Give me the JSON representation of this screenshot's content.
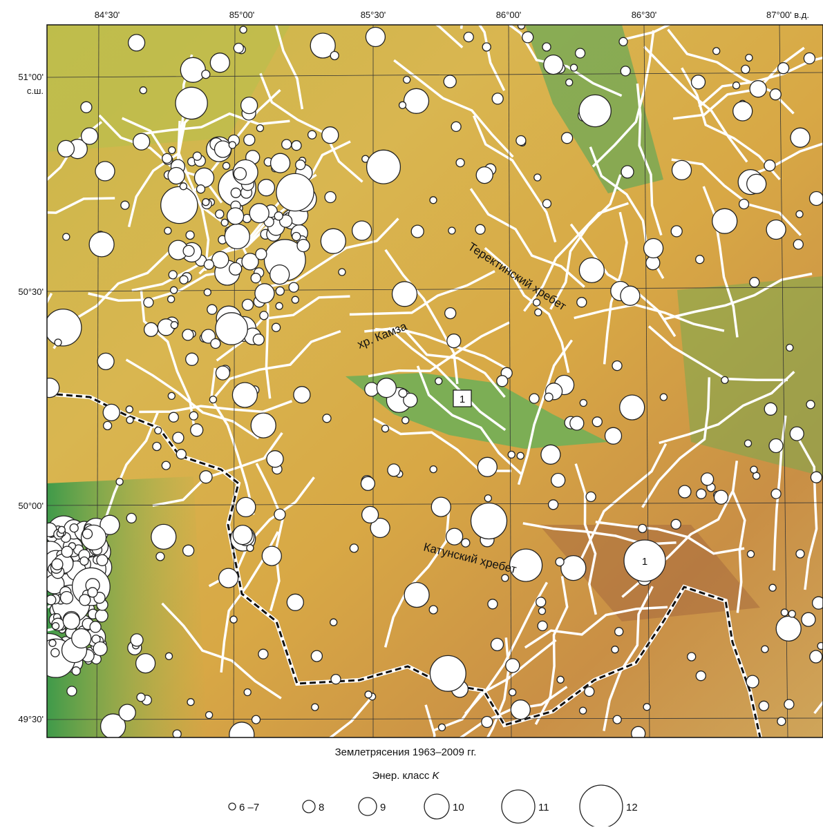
{
  "map": {
    "top_labels": [
      "84°30'",
      "85°00'",
      "85°30'",
      "86°00'",
      "86°30'",
      "87°00' в.д."
    ],
    "left_labels": [
      "51°00'",
      "с.ш.",
      "50°30'",
      "50°00'",
      "49°30'"
    ],
    "places": [
      "Теректинский хребет",
      "хр. Камза",
      "Катунский хребет"
    ],
    "markers": [
      "1",
      "1"
    ]
  },
  "legend": {
    "title": "Землетрясения 1963–2009 гг.",
    "subtitle": "Энер. класс ",
    "subtitle_symbol": "K",
    "items": [
      "6 –7",
      "8",
      "9",
      "10",
      "11",
      "12"
    ]
  }
}
